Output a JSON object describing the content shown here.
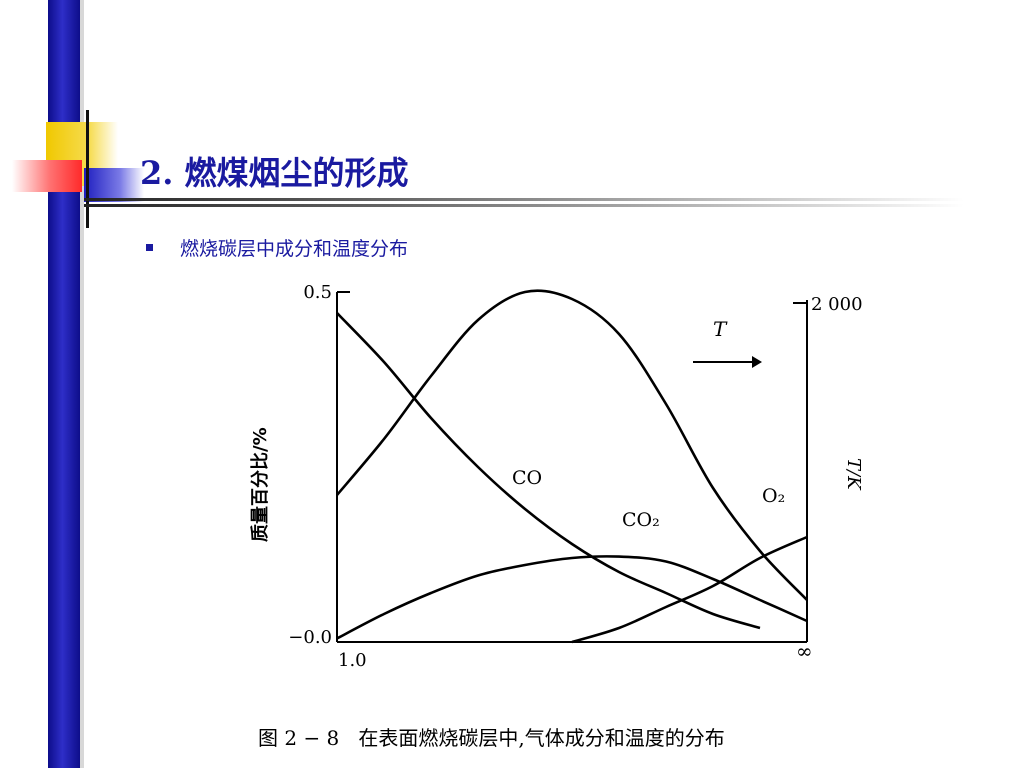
{
  "slide": {
    "title": "2. 燃煤烟尘的形成",
    "bullet": "燃烧碳层中成分和温度分布",
    "caption": "图 2 − 8   在表面燃烧碳层中,气体成分和温度的分布"
  },
  "chart_data": {
    "type": "line",
    "title": "",
    "ylabel": "质量百分比/%",
    "y2label": "T/K",
    "y_ticks": [
      "0.5",
      "−0.0"
    ],
    "y2_ticks": [
      "2 000"
    ],
    "x_ticks": [
      "1.0",
      "∞"
    ],
    "ylim": [
      0,
      0.5
    ],
    "x": [
      0,
      0.1,
      0.2,
      0.3,
      0.4,
      0.5,
      0.6,
      0.7,
      0.8,
      0.9,
      1.0
    ],
    "series": [
      {
        "name": "T",
        "values": [
          0.21,
          0.29,
          0.38,
          0.46,
          0.5,
          0.49,
          0.44,
          0.34,
          0.22,
          0.13,
          0.06
        ]
      },
      {
        "name": "CO",
        "values": [
          0.47,
          0.4,
          0.32,
          0.25,
          0.19,
          0.14,
          0.1,
          0.07,
          0.04,
          0.02,
          null
        ]
      },
      {
        "name": "CO2",
        "values": [
          0.005,
          0.04,
          0.07,
          0.095,
          0.11,
          0.12,
          0.122,
          0.115,
          0.09,
          0.06,
          0.03
        ]
      },
      {
        "name": "O2",
        "values": [
          null,
          null,
          null,
          null,
          null,
          0.0,
          0.02,
          0.05,
          0.08,
          0.12,
          0.15
        ]
      }
    ],
    "annotations": [
      "T",
      "CO",
      "CO₂",
      "O₂"
    ]
  }
}
